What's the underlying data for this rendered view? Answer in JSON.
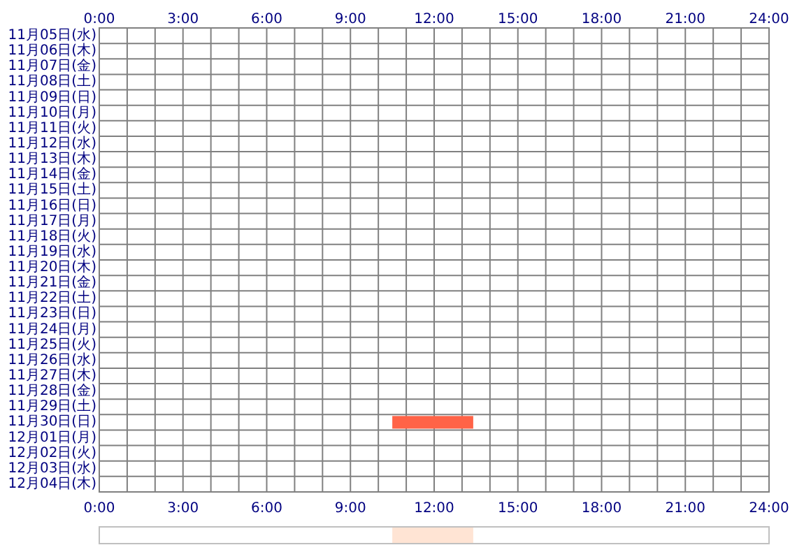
{
  "chart_data": [
    {
      "type": "bar",
      "orientation": "horizontal",
      "grid": true,
      "color": "#ff6347",
      "categories": [
        "11月05日(水)",
        "11月06日(木)",
        "11月07日(金)",
        "11月08日(土)",
        "11月09日(日)",
        "11月10日(月)",
        "11月11日(火)",
        "11月12日(水)",
        "11月13日(木)",
        "11月14日(金)",
        "11月15日(土)",
        "11月16日(日)",
        "11月17日(月)",
        "11月18日(火)",
        "11月19日(水)",
        "11月20日(木)",
        "11月21日(金)",
        "11月22日(土)",
        "11月23日(日)",
        "11月24日(月)",
        "11月25日(火)",
        "11月26日(水)",
        "11月27日(木)",
        "11月28日(金)",
        "11月29日(土)",
        "11月30日(日)",
        "12月01日(月)",
        "12月02日(火)",
        "12月03日(水)",
        "12月04日(木)"
      ],
      "values": [
        null,
        null,
        null,
        null,
        null,
        null,
        null,
        null,
        null,
        null,
        null,
        null,
        null,
        null,
        null,
        null,
        null,
        null,
        null,
        null,
        null,
        null,
        null,
        null,
        null,
        2.9,
        null,
        null,
        null,
        null
      ],
      "base": [
        null,
        null,
        null,
        null,
        null,
        null,
        null,
        null,
        null,
        null,
        null,
        null,
        null,
        null,
        null,
        null,
        null,
        null,
        null,
        null,
        null,
        null,
        null,
        null,
        null,
        10.5,
        null,
        null,
        null,
        null
      ],
      "xlim": [
        0,
        24
      ],
      "xticks": [
        {
          "value": 0,
          "label": "0:00"
        },
        {
          "value": 1,
          "label": null
        },
        {
          "value": 2,
          "label": null
        },
        {
          "value": 3,
          "label": "3:00"
        },
        {
          "value": 4,
          "label": null
        },
        {
          "value": 5,
          "label": null
        },
        {
          "value": 6,
          "label": "6:00"
        },
        {
          "value": 7,
          "label": null
        },
        {
          "value": 8,
          "label": null
        },
        {
          "value": 9,
          "label": "9:00"
        },
        {
          "value": 10,
          "label": null
        },
        {
          "value": 11,
          "label": null
        },
        {
          "value": 12,
          "label": "12:00"
        },
        {
          "value": 13,
          "label": null
        },
        {
          "value": 14,
          "label": null
        },
        {
          "value": 15,
          "label": "15:00"
        },
        {
          "value": 16,
          "label": null
        },
        {
          "value": 17,
          "label": null
        },
        {
          "value": 18,
          "label": "18:00"
        },
        {
          "value": 19,
          "label": null
        },
        {
          "value": 20,
          "label": null
        },
        {
          "value": 21,
          "label": "21:00"
        },
        {
          "value": 22,
          "label": null
        },
        {
          "value": 23,
          "label": null
        },
        {
          "value": 24,
          "label": "24:00"
        }
      ],
      "x2lim": [
        0,
        24
      ],
      "x2ticks": [
        {
          "value": 0,
          "label": "0:00"
        },
        {
          "value": 3,
          "label": "3:00"
        },
        {
          "value": 6,
          "label": "6:00"
        },
        {
          "value": 9,
          "label": "9:00"
        },
        {
          "value": 12,
          "label": "12:00"
        },
        {
          "value": 15,
          "label": "15:00"
        },
        {
          "value": 18,
          "label": "18:00"
        },
        {
          "value": 21,
          "label": "21:00"
        },
        {
          "value": 24,
          "label": "24:00"
        }
      ]
    },
    {
      "type": "bar",
      "orientation": "horizontal",
      "color": "#ffe4d4",
      "categories": [
        null
      ],
      "values": [
        2.9
      ],
      "base": [
        10.5
      ],
      "xlim": [
        0,
        24
      ]
    }
  ]
}
